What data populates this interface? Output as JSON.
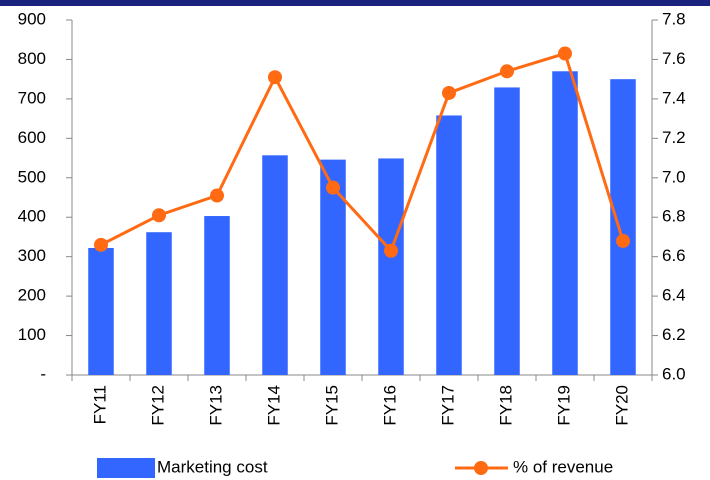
{
  "chart_data": {
    "type": "bar_line",
    "categories": [
      "FY11",
      "FY12",
      "FY13",
      "FY14",
      "FY15",
      "FY16",
      "FY17",
      "FY18",
      "FY19",
      "FY20"
    ],
    "series": [
      {
        "name": "Marketing cost",
        "type": "bar",
        "color": "#3366ff",
        "values": [
          322,
          362,
          403,
          557,
          546,
          549,
          658,
          729,
          770,
          750
        ]
      },
      {
        "name": "% of revenue",
        "type": "line",
        "axis": "y2",
        "color": "#ff6a13",
        "values": [
          6.66,
          6.81,
          6.91,
          7.51,
          6.95,
          6.63,
          7.43,
          7.54,
          7.63,
          6.68
        ]
      }
    ],
    "ylim": [
      0,
      900
    ],
    "yticks": [
      {
        "value": 0,
        "label": "-"
      },
      100,
      200,
      300,
      400,
      500,
      600,
      700,
      800,
      900
    ],
    "y2lim": [
      6,
      7.8
    ],
    "y2ticks": [
      {
        "value": 6,
        "label": "6.0"
      },
      6.2,
      6.4,
      6.6,
      6.8,
      {
        "value": 7,
        "label": "7.0"
      },
      7.2,
      7.4,
      7.6,
      7.8
    ],
    "legend": "bottom"
  }
}
